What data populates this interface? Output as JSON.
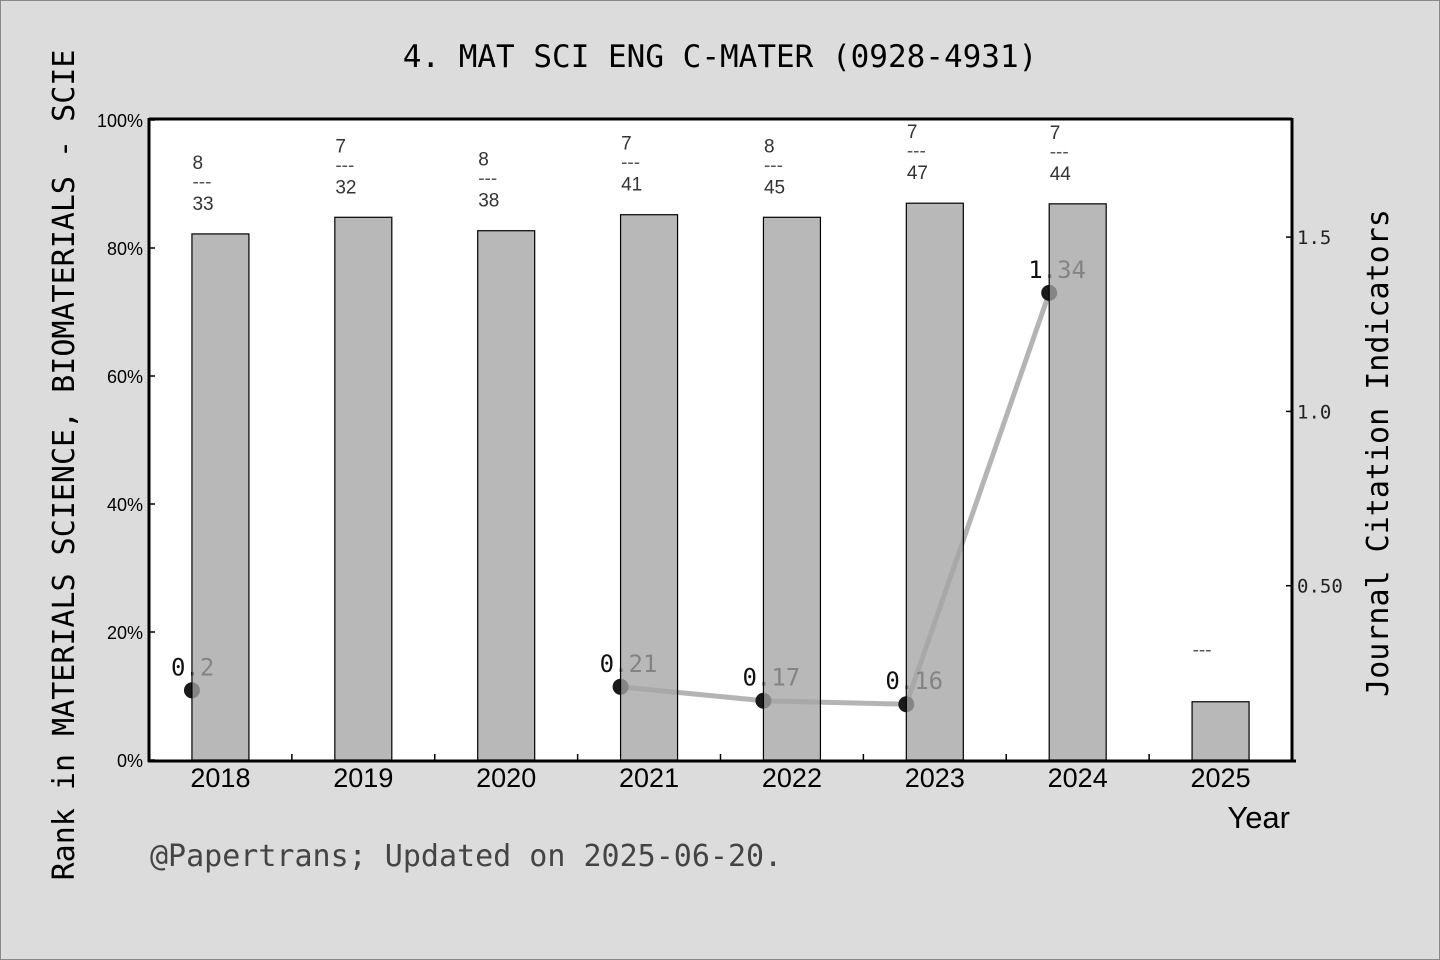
{
  "chart_data": {
    "type": "bar",
    "title": "4. MAT SCI ENG C-MATER (0928-4931)",
    "xlabel": "Year",
    "ylabel": "Rank in MATERIALS SCIENCE, BIOMATERIALS - SCIE",
    "y2label": "Journal Citation Indicators",
    "categories": [
      "2018",
      "2019",
      "2020",
      "2021",
      "2022",
      "2023",
      "2024",
      "2025"
    ],
    "ylim": [
      0,
      100
    ],
    "yticks": [
      "0%",
      "20%",
      "40%",
      "60%",
      "80%",
      "100%"
    ],
    "y2lim": [
      0,
      1.836
    ],
    "y2ticks": [
      "0.50",
      "1.0",
      "1.5"
    ],
    "grid": false,
    "series": [
      {
        "type": "bar",
        "values": [
          82.2,
          84.8,
          82.7,
          85.2,
          84.8,
          87.0,
          86.9,
          9.1
        ],
        "labels": [
          [
            "8",
            "---",
            "33"
          ],
          [
            "7",
            "---",
            "32"
          ],
          [
            "8",
            "---",
            "38"
          ],
          [
            "7",
            "---",
            "41"
          ],
          [
            "8",
            "---",
            "45"
          ],
          [
            "7",
            "---",
            "47"
          ],
          [
            "7",
            "---",
            "44"
          ],
          [
            "",
            "---",
            ""
          ]
        ]
      },
      {
        "type": "line",
        "axis": "right",
        "values": [
          0.2,
          null,
          null,
          0.21,
          0.17,
          0.16,
          1.34,
          null
        ],
        "labels": [
          "0.2",
          "",
          "",
          "0.21",
          "0.17",
          "0.16",
          "1.34",
          ""
        ]
      }
    ],
    "colors": {
      "bar": "#b8b8b8",
      "line": "#b4b4b4",
      "point": "#1a1a1a",
      "background": "#dcdcdc",
      "plot": "#ffffff"
    }
  },
  "footer": "@Papertrans; Updated on 2025-06-20."
}
